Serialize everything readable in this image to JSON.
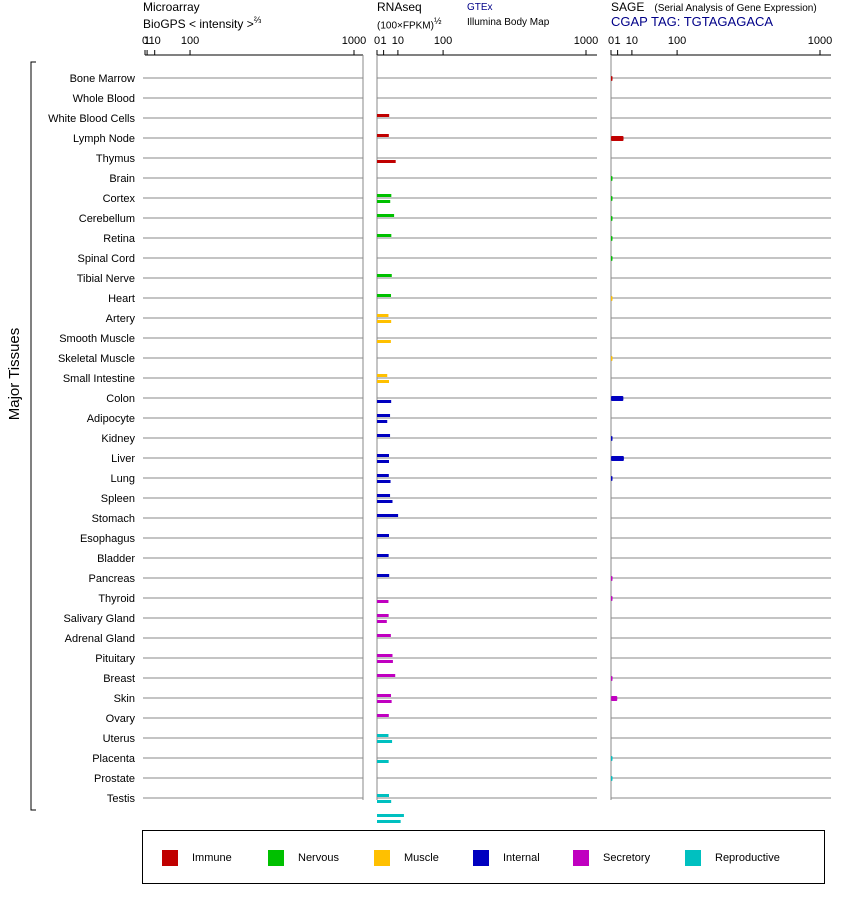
{
  "headers": {
    "microarray_line1": "Microarray",
    "microarray_line2": "BioGPS   < intensity >",
    "microarray_exp": "⅔",
    "rnaseq_line1": "RNAseq",
    "rnaseq_line2": "(100×FPKM)",
    "rnaseq_exp": "½",
    "rnaseq_src1": "GTEx",
    "rnaseq_src2": "Illumina Body Map",
    "sage_line1": "SAGE",
    "sage_subtitle": "(Serial Analysis of Gene Expression)",
    "sage_tag": "CGAP TAG: TGTAGAGACA"
  },
  "y_group_label": "Major Tissues",
  "legend": [
    {
      "label": "Immune",
      "color": "#c00000"
    },
    {
      "label": "Nervous",
      "color": "#00c000"
    },
    {
      "label": "Muscle",
      "color": "#ffc000"
    },
    {
      "label": "Internal",
      "color": "#0000c0"
    },
    {
      "label": "Secretory",
      "color": "#c000c0"
    },
    {
      "label": "Reproductive",
      "color": "#00c0c0"
    }
  ],
  "chart_data": {
    "type": "bar",
    "x_scale": "power (microarray 2/3, RNAseq 1/2, SAGE 1/2)",
    "ticks": [
      "0",
      "1",
      "10",
      "100",
      "1000"
    ],
    "xlim": [
      0,
      1000
    ],
    "categories": [
      "Bone Marrow",
      "Whole Blood",
      "White Blood Cells",
      "Lymph Node",
      "Thymus",
      "Brain",
      "Cortex",
      "Cerebellum",
      "Retina",
      "Spinal Cord",
      "Tibial Nerve",
      "Heart",
      "Artery",
      "Smooth Muscle",
      "Skeletal Muscle",
      "Small Intestine",
      "Colon",
      "Adipocyte",
      "Kidney",
      "Liver",
      "Lung",
      "Spleen",
      "Stomach",
      "Esophagus",
      "Bladder",
      "Pancreas",
      "Thyroid",
      "Salivary Gland",
      "Adrenal Gland",
      "Pituitary",
      "Breast",
      "Skin",
      "Ovary",
      "Uterus",
      "Placenta",
      "Prostate",
      "Testis"
    ],
    "groups": [
      "Immune",
      "Immune",
      "Immune",
      "Immune",
      "Immune",
      "Nervous",
      "Nervous",
      "Nervous",
      "Nervous",
      "Nervous",
      "Nervous",
      "Muscle",
      "Muscle",
      "Muscle",
      "Muscle",
      "Internal",
      "Internal",
      "Internal",
      "Internal",
      "Internal",
      "Internal",
      "Internal",
      "Internal",
      "Internal",
      "Internal",
      "Secretory",
      "Secretory",
      "Secretory",
      "Secretory",
      "Secretory",
      "Secretory",
      "Secretory",
      "Reproductive",
      "Reproductive",
      "Reproductive",
      "Reproductive",
      "Reproductive"
    ],
    "series": [
      {
        "name": "Microarray",
        "values": [
          0,
          0,
          0,
          0,
          0,
          0,
          0,
          0,
          0,
          0,
          0,
          0,
          0,
          0,
          0,
          0,
          0,
          0,
          0,
          0,
          0,
          0,
          0,
          0,
          0,
          0,
          0,
          0,
          0,
          0,
          0,
          0,
          0,
          0,
          0,
          0,
          0
        ]
      },
      {
        "name": "GTEx",
        "values": [
          null,
          3.4,
          3.2,
          null,
          null,
          4.7,
          6.7,
          4.7,
          null,
          5.0,
          4.5,
          3.0,
          null,
          null,
          2.4,
          null,
          3.9,
          3.9,
          3.3,
          3.2,
          3.9,
          10.2,
          3.3,
          3.1,
          3.4,
          null,
          3.1,
          4.4,
          5.5,
          7.6,
          4.5,
          3.2,
          3.0,
          null,
          null,
          3.3,
          16.6
        ]
      },
      {
        "name": "Illumina Body Map",
        "values": [
          null,
          null,
          null,
          8.0,
          null,
          4.0,
          null,
          null,
          null,
          null,
          null,
          4.6,
          4.4,
          null,
          3.3,
          4.6,
          2.4,
          null,
          3.3,
          4.2,
          5.5,
          null,
          null,
          null,
          null,
          3.0,
          2.2,
          null,
          5.8,
          null,
          4.9,
          null,
          5.2,
          3.1,
          null,
          4.6,
          12.8
        ]
      },
      {
        "name": "SAGE",
        "values": [
          0.01,
          null,
          null,
          3.6,
          null,
          0.01,
          0.01,
          0.01,
          0.01,
          0.01,
          null,
          0,
          null,
          null,
          0,
          null,
          3.5,
          null,
          0.01,
          3.8,
          0.01,
          null,
          null,
          null,
          null,
          0.01,
          0.01,
          null,
          null,
          null,
          0.01,
          0.9,
          null,
          null,
          0.01,
          0.01,
          null
        ]
      }
    ]
  }
}
